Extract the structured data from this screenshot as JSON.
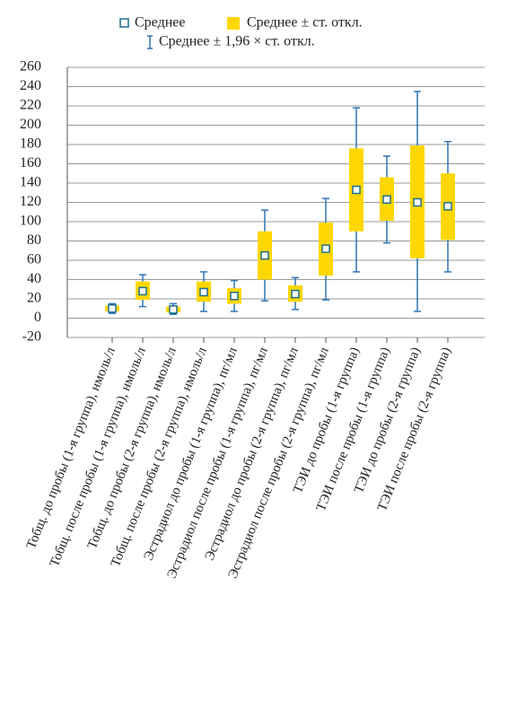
{
  "chart_data": {
    "type": "box",
    "categories": [
      "Тобщ. до пробы (1-я группа), нмоль/л",
      "Тобщ. после пробы (1-я группа), нмоль/л",
      "Тобщ. до пробы (2-я группа), нмоль/л",
      "Тобщ. после пробы (2-я группа), нмоль/л",
      "Эстрадиол до пробы (1-я группа), пг/мл",
      "Эстрадиол после пробы (1-я группа), пг/мл",
      "Эстрадиол до пробы (2-я группа), пг/мл",
      "Эстрадиол после пробы (2-я группа), пг/мл",
      "ТЭИ до пробы (1-я группа)",
      "ТЭИ после пробы (1-я группа)",
      "ТЭИ до пробы (2-я группа)",
      "ТЭИ после пробы (2-я группа)"
    ],
    "series": [
      {
        "name": "Среднее",
        "color": "#1f6f8b",
        "values": [
          10,
          28,
          9,
          27,
          23,
          65,
          25,
          72,
          133,
          123,
          120,
          116
        ]
      },
      {
        "name": "Среднее ± ст. откл.",
        "color": "#ffd700",
        "low": [
          7,
          19,
          6,
          17,
          15,
          40,
          17,
          44,
          90,
          101,
          62,
          81
        ],
        "high": [
          13,
          38,
          12,
          38,
          31,
          90,
          34,
          99,
          176,
          146,
          179,
          150
        ]
      },
      {
        "name": "Среднее ± 1,96 × ст. откл.",
        "color": "#2e75b6",
        "low": [
          5,
          12,
          4,
          7,
          7,
          18,
          9,
          19,
          48,
          78,
          7,
          48
        ],
        "high": [
          15,
          45,
          15,
          48,
          39,
          112,
          42,
          124,
          218,
          168,
          235,
          183
        ]
      }
    ],
    "ylim": [
      -20,
      260
    ],
    "yticks": [
      -20,
      0,
      20,
      40,
      60,
      80,
      100,
      120,
      140,
      160,
      180,
      200,
      220,
      240,
      260
    ],
    "grid": true
  }
}
